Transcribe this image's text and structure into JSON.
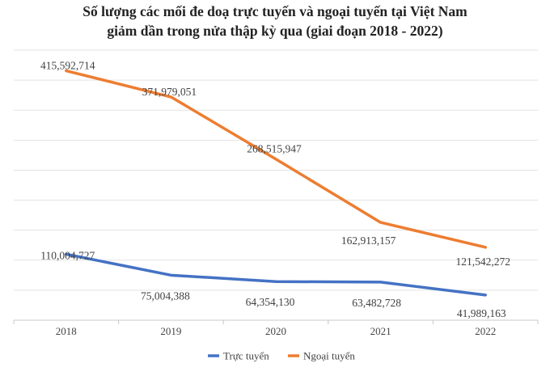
{
  "chart_data": {
    "type": "line",
    "title": [
      "Số lượng các mối đe doạ trực tuyến và ngoại tuyến tại Việt Nam",
      "giảm dần trong nửa thập kỳ qua (giai đoạn 2018 - 2022)"
    ],
    "categories": [
      "2018",
      "2019",
      "2020",
      "2021",
      "2022"
    ],
    "series": [
      {
        "name": "Trực tuyến",
        "color": "#4472C4",
        "values": [
          110004727,
          75004388,
          64354130,
          63482728,
          41989163
        ],
        "labels": [
          "110,004,727",
          "75,004,388",
          "64,354,130",
          "63,482,728",
          "41,989,163"
        ]
      },
      {
        "name": "Ngoại tuyến",
        "color": "#ED7D31",
        "values": [
          415592714,
          371979051,
          268515947,
          162913157,
          121542272
        ],
        "labels": [
          "415,592,714",
          "371,979,051",
          "268,515,947",
          "162,913,157",
          "121,542,272"
        ]
      }
    ],
    "ylim": [
      0,
      450000000
    ],
    "grid": true,
    "legend": "bottom"
  }
}
